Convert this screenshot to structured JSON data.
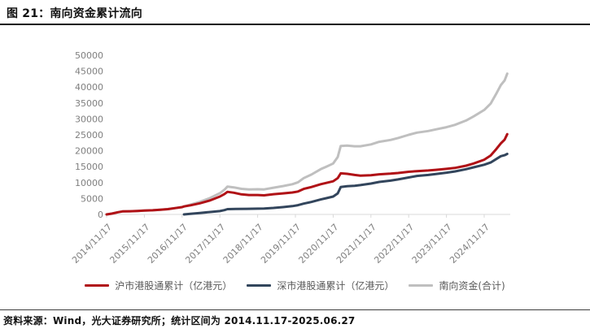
{
  "title": "图 21：南向资金累计流向",
  "source_note": "资料来源：Wind，光大证券研究所；统计区间为 2014.11.17-2025.06.27",
  "colors": {
    "sh": "#b01116",
    "sz": "#32455c",
    "total": "#bfbfbf",
    "axis": "#d9d9d9",
    "tick_label": "#7f7f7f",
    "legend_text": "#595959",
    "title_rule": "#111111"
  },
  "chart_data": {
    "type": "line",
    "title": "",
    "xlabel": "",
    "ylabel": "",
    "unit": "亿港元",
    "grid": false,
    "legend_position": "bottom",
    "ylim": [
      0,
      50000
    ],
    "yticks": [
      0,
      5000,
      10000,
      15000,
      20000,
      25000,
      30000,
      35000,
      40000,
      45000,
      50000
    ],
    "x_range_years": [
      2014.88,
      2025.49
    ],
    "xticks": [
      "2014/11/17",
      "2015/11/17",
      "2016/11/17",
      "2017/11/17",
      "2018/11/17",
      "2019/11/17",
      "2020/11/17",
      "2021/11/17",
      "2022/11/17",
      "2023/11/17",
      "2024/11/17"
    ],
    "xtick_years": [
      2014.88,
      2015.88,
      2016.88,
      2017.88,
      2018.88,
      2019.88,
      2020.88,
      2021.88,
      2022.88,
      2023.88,
      2024.88
    ],
    "series": [
      {
        "name": "沪市港股通累计（亿港元）",
        "color_key": "sh",
        "points": [
          [
            2014.88,
            0
          ],
          [
            2015.02,
            250
          ],
          [
            2015.18,
            700
          ],
          [
            2015.3,
            950
          ],
          [
            2015.5,
            1000
          ],
          [
            2015.7,
            1100
          ],
          [
            2015.88,
            1200
          ],
          [
            2016.1,
            1300
          ],
          [
            2016.3,
            1450
          ],
          [
            2016.5,
            1650
          ],
          [
            2016.7,
            2000
          ],
          [
            2016.88,
            2300
          ],
          [
            2016.93,
            2500
          ],
          [
            2017.1,
            2850
          ],
          [
            2017.35,
            3500
          ],
          [
            2017.6,
            4300
          ],
          [
            2017.88,
            5600
          ],
          [
            2018.0,
            6400
          ],
          [
            2018.08,
            7100
          ],
          [
            2018.25,
            6800
          ],
          [
            2018.45,
            6300
          ],
          [
            2018.65,
            6100
          ],
          [
            2018.88,
            6100
          ],
          [
            2019.05,
            6000
          ],
          [
            2019.3,
            6350
          ],
          [
            2019.55,
            6600
          ],
          [
            2019.8,
            6900
          ],
          [
            2019.95,
            7200
          ],
          [
            2020.1,
            8000
          ],
          [
            2020.3,
            8600
          ],
          [
            2020.55,
            9500
          ],
          [
            2020.7,
            9900
          ],
          [
            2020.88,
            10400
          ],
          [
            2021.0,
            11400
          ],
          [
            2021.08,
            12900
          ],
          [
            2021.25,
            12750
          ],
          [
            2021.45,
            12400
          ],
          [
            2021.6,
            12200
          ],
          [
            2021.88,
            12300
          ],
          [
            2022.1,
            12600
          ],
          [
            2022.4,
            12800
          ],
          [
            2022.6,
            13000
          ],
          [
            2022.88,
            13400
          ],
          [
            2023.1,
            13600
          ],
          [
            2023.4,
            13800
          ],
          [
            2023.6,
            14000
          ],
          [
            2023.88,
            14300
          ],
          [
            2024.1,
            14600
          ],
          [
            2024.4,
            15300
          ],
          [
            2024.6,
            16000
          ],
          [
            2024.88,
            17200
          ],
          [
            2025.05,
            18500
          ],
          [
            2025.2,
            20500
          ],
          [
            2025.32,
            22300
          ],
          [
            2025.42,
            23500
          ],
          [
            2025.49,
            25200
          ]
        ]
      },
      {
        "name": "深市港股通累计（亿港元）",
        "color_key": "sz",
        "points": [
          [
            2016.93,
            0
          ],
          [
            2017.1,
            200
          ],
          [
            2017.35,
            450
          ],
          [
            2017.6,
            750
          ],
          [
            2017.88,
            1050
          ],
          [
            2018.0,
            1350
          ],
          [
            2018.08,
            1650
          ],
          [
            2018.3,
            1700
          ],
          [
            2018.6,
            1750
          ],
          [
            2018.88,
            1800
          ],
          [
            2019.05,
            1850
          ],
          [
            2019.3,
            2050
          ],
          [
            2019.55,
            2300
          ],
          [
            2019.8,
            2600
          ],
          [
            2019.95,
            2900
          ],
          [
            2020.1,
            3400
          ],
          [
            2020.3,
            3900
          ],
          [
            2020.55,
            4700
          ],
          [
            2020.7,
            5100
          ],
          [
            2020.88,
            5600
          ],
          [
            2021.0,
            6600
          ],
          [
            2021.08,
            8600
          ],
          [
            2021.25,
            8850
          ],
          [
            2021.45,
            9000
          ],
          [
            2021.6,
            9200
          ],
          [
            2021.88,
            9700
          ],
          [
            2022.1,
            10200
          ],
          [
            2022.4,
            10600
          ],
          [
            2022.6,
            11000
          ],
          [
            2022.88,
            11600
          ],
          [
            2023.1,
            12100
          ],
          [
            2023.4,
            12400
          ],
          [
            2023.6,
            12700
          ],
          [
            2023.88,
            13100
          ],
          [
            2024.1,
            13500
          ],
          [
            2024.4,
            14200
          ],
          [
            2024.6,
            14800
          ],
          [
            2024.88,
            15600
          ],
          [
            2025.05,
            16300
          ],
          [
            2025.2,
            17400
          ],
          [
            2025.32,
            18300
          ],
          [
            2025.42,
            18600
          ],
          [
            2025.49,
            19000
          ]
        ]
      },
      {
        "name": "南向资金(合计)",
        "color_key": "total",
        "points": [
          [
            2014.88,
            0
          ],
          [
            2015.02,
            250
          ],
          [
            2015.18,
            700
          ],
          [
            2015.3,
            950
          ],
          [
            2015.5,
            1000
          ],
          [
            2015.7,
            1100
          ],
          [
            2015.88,
            1200
          ],
          [
            2016.1,
            1300
          ],
          [
            2016.3,
            1450
          ],
          [
            2016.5,
            1650
          ],
          [
            2016.7,
            2000
          ],
          [
            2016.88,
            2300
          ],
          [
            2016.93,
            2500
          ],
          [
            2017.1,
            3050
          ],
          [
            2017.35,
            3950
          ],
          [
            2017.6,
            5050
          ],
          [
            2017.88,
            6650
          ],
          [
            2018.0,
            7750
          ],
          [
            2018.08,
            8750
          ],
          [
            2018.25,
            8500
          ],
          [
            2018.45,
            8030
          ],
          [
            2018.65,
            7860
          ],
          [
            2018.88,
            7900
          ],
          [
            2019.05,
            7850
          ],
          [
            2019.3,
            8400
          ],
          [
            2019.55,
            8900
          ],
          [
            2019.8,
            9500
          ],
          [
            2019.95,
            10100
          ],
          [
            2020.1,
            11400
          ],
          [
            2020.3,
            12500
          ],
          [
            2020.55,
            14200
          ],
          [
            2020.7,
            15000
          ],
          [
            2020.88,
            16000
          ],
          [
            2021.0,
            18000
          ],
          [
            2021.08,
            21500
          ],
          [
            2021.25,
            21600
          ],
          [
            2021.45,
            21400
          ],
          [
            2021.6,
            21400
          ],
          [
            2021.88,
            22000
          ],
          [
            2022.1,
            22800
          ],
          [
            2022.4,
            23400
          ],
          [
            2022.6,
            24000
          ],
          [
            2022.88,
            25000
          ],
          [
            2023.1,
            25700
          ],
          [
            2023.4,
            26200
          ],
          [
            2023.6,
            26700
          ],
          [
            2023.88,
            27400
          ],
          [
            2024.1,
            28100
          ],
          [
            2024.4,
            29500
          ],
          [
            2024.6,
            30800
          ],
          [
            2024.88,
            32800
          ],
          [
            2025.05,
            34800
          ],
          [
            2025.2,
            37900
          ],
          [
            2025.32,
            40600
          ],
          [
            2025.42,
            42100
          ],
          [
            2025.49,
            44200
          ]
        ]
      }
    ]
  }
}
